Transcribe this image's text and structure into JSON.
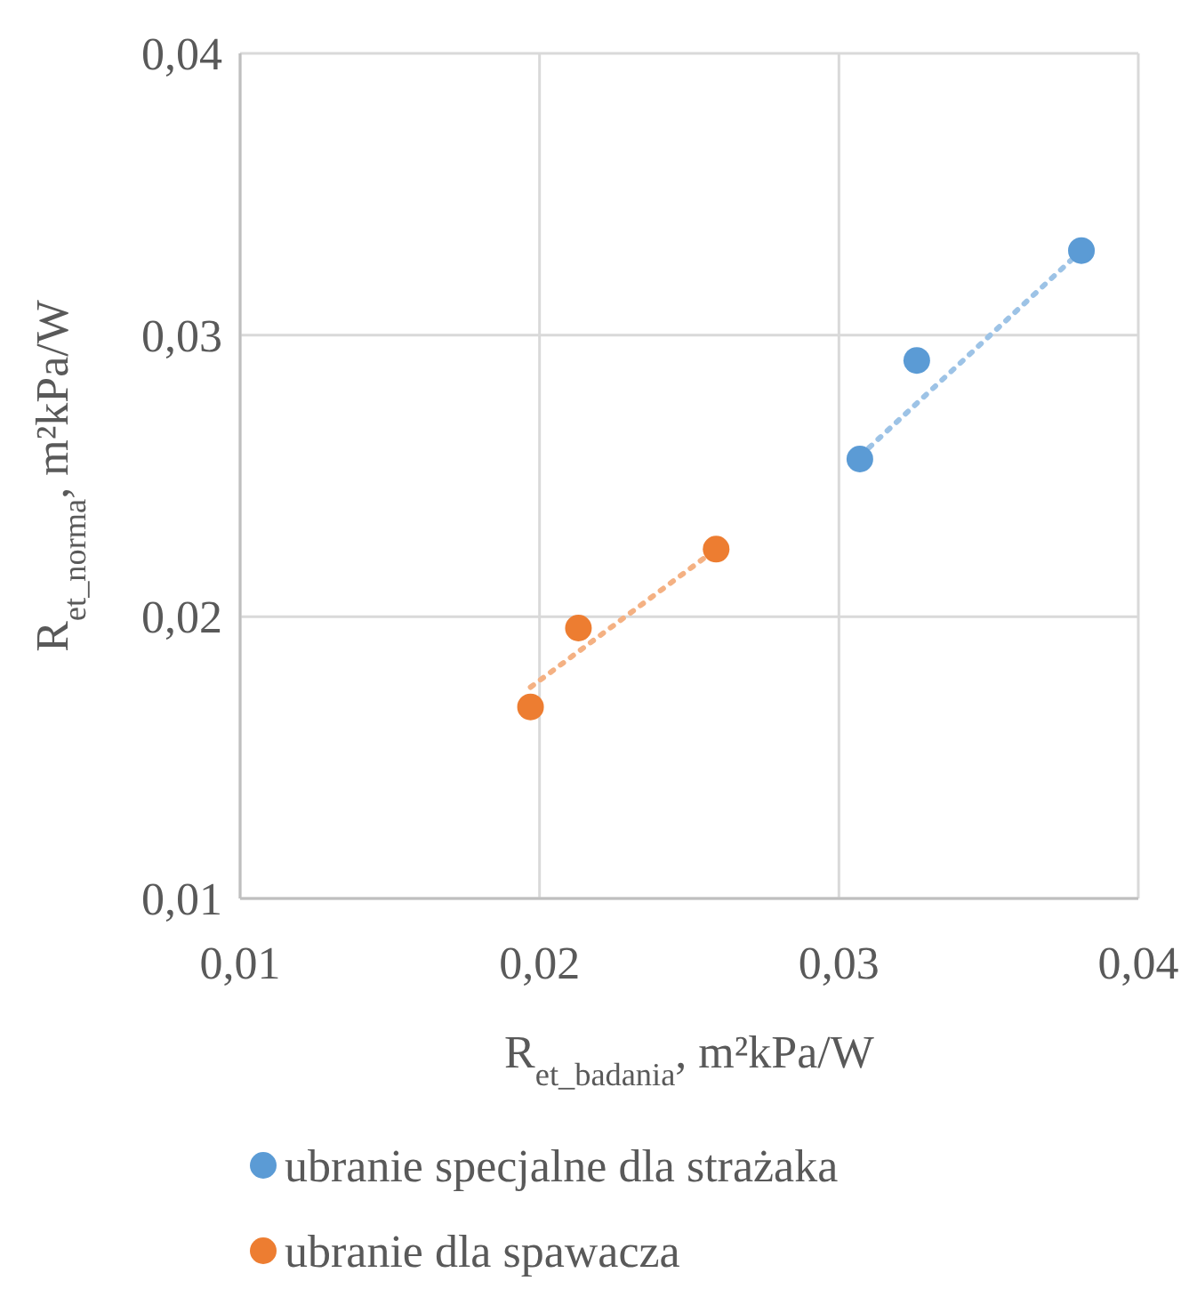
{
  "chart_data": {
    "type": "scatter",
    "xlabel": "R$_{et_badania}$, m²kPa/W",
    "ylabel": "R$_{et_norma}$, m²kPa/W",
    "xlim": [
      0.01,
      0.04
    ],
    "ylim": [
      0.01,
      0.04
    ],
    "xticks": [
      {
        "value": 0.01,
        "label": "0,01"
      },
      {
        "value": 0.02,
        "label": "0,02"
      },
      {
        "value": 0.03,
        "label": "0,03"
      },
      {
        "value": 0.04,
        "label": "0,04"
      }
    ],
    "yticks": [
      {
        "value": 0.01,
        "label": "0,01"
      },
      {
        "value": 0.02,
        "label": "0,02"
      },
      {
        "value": 0.03,
        "label": "0,03"
      },
      {
        "value": 0.04,
        "label": "0,04"
      }
    ],
    "grid": true,
    "legend": "bottom",
    "marker": "circle",
    "series": [
      {
        "name": "ubranie specjalne dla strażaka",
        "color": "#5b9bd5",
        "x": [
          0.0307,
          0.0326,
          0.0381
        ],
        "values": [
          0.0256,
          0.0291,
          0.033
        ]
      },
      {
        "name": "ubranie dla spawacza",
        "color": "#ed7d31",
        "x": [
          0.0197,
          0.0213,
          0.0259
        ],
        "values": [
          0.0168,
          0.0196,
          0.0224
        ]
      },
      {
        "type": "line",
        "color": "#9dc3e6",
        "line_style": "dotted",
        "marker": "none",
        "x": [
          0.0307,
          0.0381
        ],
        "values": [
          0.0257,
          0.033
        ]
      },
      {
        "type": "line",
        "color": "#f4b183",
        "line_style": "dotted",
        "marker": "none",
        "x": [
          0.0197,
          0.0259
        ],
        "values": [
          0.0175,
          0.0224
        ]
      }
    ]
  }
}
